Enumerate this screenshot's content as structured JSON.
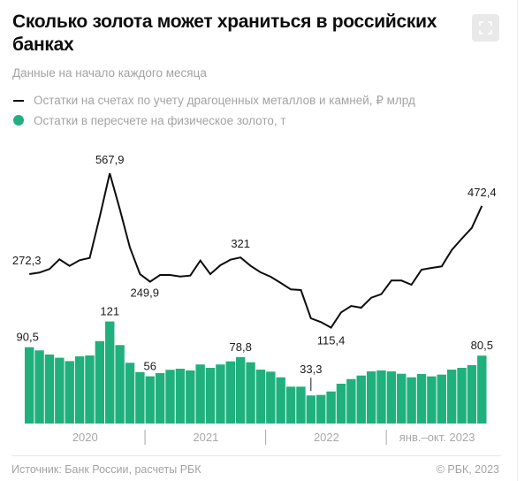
{
  "header": {
    "title": "Сколько золота может храниться в российских банках",
    "subtitle": "Данные на начало каждого месяца",
    "fullscreen_icon": "expand-icon"
  },
  "legend": [
    {
      "label": "Остатки на счетах по учету драгоценных металлов и камней, ₽ млрд",
      "swatch": "line",
      "color": "#0d0d0d"
    },
    {
      "label": "Остатки в пересчете на физическое золото, т",
      "swatch": "dot",
      "color": "#1fb07e"
    }
  ],
  "footer": {
    "source": "Источник: Банк России, расчеты РБК",
    "copyright": "© РБК, 2023"
  },
  "chart_data": {
    "type": "bar+line",
    "title": "Сколько золота может храниться в российских банках",
    "subtitle": "Данные на начало каждого месяца",
    "x_groups": [
      {
        "label": "2020",
        "months": 12
      },
      {
        "label": "2021",
        "months": 12
      },
      {
        "label": "2022",
        "months": 12
      },
      {
        "label": "янв.–окт. 2023",
        "months": 10
      }
    ],
    "grid": false,
    "series": [
      {
        "name": "Остатки на счетах по учету драгоценных металлов и камней, ₽ млрд",
        "type": "line",
        "color": "#0d0d0d",
        "values": [
          272.3,
          276.7,
          287.1,
          315.6,
          296.4,
          313.0,
          319.8,
          440.8,
          567.9,
          462.4,
          350.1,
          272.3,
          249.9,
          269.7,
          269.7,
          265.3,
          267.9,
          312.0,
          272.3,
          298.2,
          314.6,
          321.0,
          296.4,
          277.5,
          264.5,
          246.4,
          227.4,
          225.6,
          142.6,
          131.5,
          115.4,
          160.0,
          179.0,
          173.8,
          203.1,
          213.4,
          253.4,
          253.4,
          241.2,
          285.3,
          290.4,
          294.9,
          343.1,
          376.0,
          408.0,
          472.4
        ],
        "labels": [
          {
            "index": 0,
            "text": "272,3"
          },
          {
            "index": 8,
            "text": "567,9"
          },
          {
            "index": 12,
            "text": "249,9"
          },
          {
            "index": 21,
            "text": "321"
          },
          {
            "index": 30,
            "text": "115,4"
          },
          {
            "index": 45,
            "text": "472,4"
          }
        ]
      },
      {
        "name": "Остатки в пересчете на физическое золото, т",
        "type": "bar",
        "color": "#1fb07e",
        "values": [
          90.5,
          86.7,
          81.8,
          78.0,
          74.0,
          79.6,
          80.7,
          97.7,
          121.0,
          93.0,
          72.0,
          61.0,
          56.0,
          59.8,
          63.7,
          65.0,
          62.9,
          70.0,
          66.0,
          70.0,
          73.7,
          78.8,
          72.6,
          63.9,
          61.5,
          54.8,
          43.7,
          43.7,
          33.3,
          33.9,
          38.0,
          47.2,
          52.7,
          56.9,
          61.8,
          62.9,
          61.8,
          59.0,
          54.8,
          58.7,
          55.9,
          58.0,
          63.9,
          66.0,
          69.2,
          80.5
        ],
        "labels": [
          {
            "index": 0,
            "text": "90,5"
          },
          {
            "index": 8,
            "text": "121"
          },
          {
            "index": 12,
            "text": "56"
          },
          {
            "index": 21,
            "text": "78,8"
          },
          {
            "index": 28,
            "text": "33,3",
            "leader": true
          },
          {
            "index": 45,
            "text": "80,5"
          }
        ]
      }
    ]
  }
}
